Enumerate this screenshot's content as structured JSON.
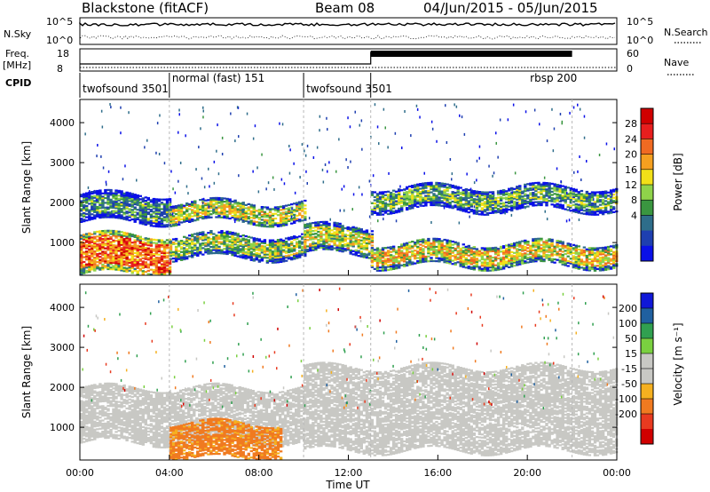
{
  "header": {
    "radar": "Blackstone (fitACF)",
    "beam": "Beam 08",
    "date_range": "04/Jun/2015 - 05/Jun/2015"
  },
  "noise_panel": {
    "left_label": "N.Sky",
    "right_label": "N.Search",
    "left_ticks": [
      "10^5",
      "10^0"
    ],
    "right_ticks": [
      "10^5",
      "10^0"
    ]
  },
  "freq_panel": {
    "left_label_1": "Freq.",
    "left_label_2": "[MHz]",
    "right_label": "Nave",
    "left_ticks": [
      "18",
      "8"
    ],
    "right_ticks": [
      "60",
      "0"
    ]
  },
  "cpid": {
    "label": "CPID",
    "modes": [
      {
        "name": "twofsound 3501",
        "start_h": 0
      },
      {
        "name": "normal (fast) 151",
        "start_h": 4
      },
      {
        "name": "twofsound 3501",
        "start_h": 10
      },
      {
        "name": "rbsp 200",
        "start_h": 13,
        "label_h": 20
      }
    ],
    "mode_change_hours": [
      4,
      10,
      13,
      22
    ]
  },
  "colors": {
    "power": [
      "#0a10e8",
      "#1e3fb0",
      "#2e6d8a",
      "#3a9640",
      "#8fd34a",
      "#f2e018",
      "#f5a020",
      "#f06a22",
      "#e81e1e",
      "#d00000"
    ],
    "velocity": [
      "#1018d8",
      "#2060a0",
      "#30a050",
      "#7ad040",
      "#c8c8c4",
      "#c8c8c4",
      "#f5b020",
      "#f07a20",
      "#e83a20",
      "#d00000"
    ]
  },
  "chart_data": [
    {
      "type": "heatmap",
      "name": "power",
      "ylabel": "Slant Range [km]",
      "y_ticks": [
        1000,
        2000,
        3000,
        4000
      ],
      "ylim": [
        180,
        4580
      ],
      "xlim_hours": [
        0,
        24
      ],
      "colorbar": {
        "label": "Power [dB]",
        "range": [
          0,
          32
        ],
        "tick_labels": [
          "4",
          "8",
          "12",
          "16",
          "20",
          "24",
          "28"
        ]
      },
      "echo_bands": [
        {
          "t0": 0,
          "t1": 4,
          "r0": 200,
          "r1": 1200,
          "value": 24
        },
        {
          "t0": 0,
          "t1": 4,
          "r0": 1500,
          "r1": 2200,
          "value": 10
        },
        {
          "t0": 4,
          "t1": 10,
          "r0": 1500,
          "r1": 2000,
          "value": 16
        },
        {
          "t0": 4,
          "t1": 10,
          "r0": 600,
          "r1": 1200,
          "value": 14
        },
        {
          "t0": 10,
          "t1": 13,
          "r0": 700,
          "r1": 1400,
          "value": 16
        },
        {
          "t0": 13,
          "t1": 24,
          "r0": 400,
          "r1": 1000,
          "value": 18
        },
        {
          "t0": 13,
          "t1": 24,
          "r0": 1800,
          "r1": 2400,
          "value": 12
        }
      ]
    },
    {
      "type": "heatmap",
      "name": "velocity",
      "ylabel": "Slant Range [km]",
      "xlabel": "Time UT",
      "x_tick_labels": [
        "00:00",
        "04:00",
        "08:00",
        "12:00",
        "16:00",
        "20:00",
        "00:00"
      ],
      "y_ticks": [
        1000,
        2000,
        3000,
        4000
      ],
      "ylim": [
        180,
        4580
      ],
      "xlim_hours": [
        0,
        24
      ],
      "colorbar": {
        "label": "Velocity [m s⁻¹]",
        "range": [
          -250,
          250
        ],
        "tick_labels": [
          "200",
          "100",
          "50",
          "15",
          "-15",
          "-50",
          "-100",
          "-200"
        ]
      },
      "echo_bands": [
        {
          "t0": 0,
          "t1": 10,
          "r0": 600,
          "r1": 2000,
          "value": 0
        },
        {
          "t0": 4,
          "t1": 9,
          "r0": 200,
          "r1": 1100,
          "value": -60
        },
        {
          "t0": 10,
          "t1": 24,
          "r0": 400,
          "r1": 2500,
          "value": 0
        }
      ]
    }
  ]
}
